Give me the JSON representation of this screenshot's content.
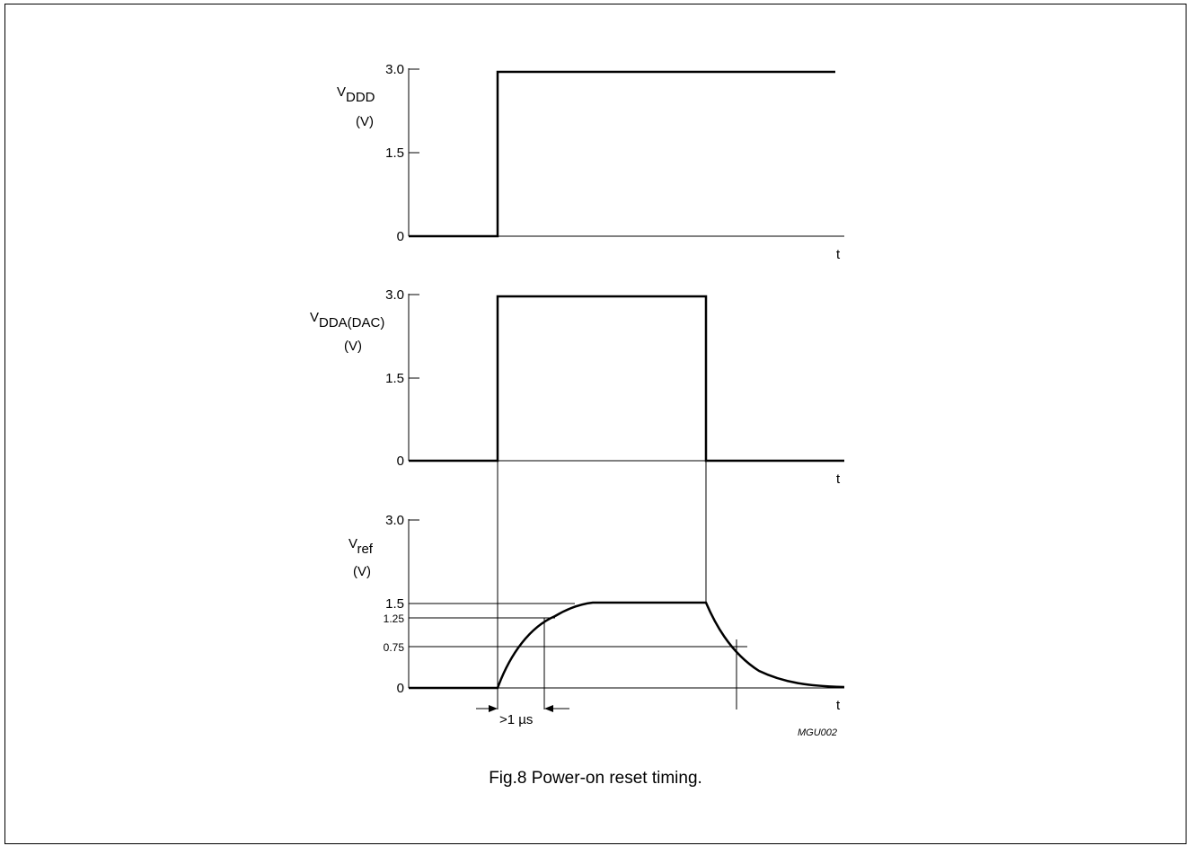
{
  "figure_id": "MGU002",
  "caption": "Fig.8  Power-on reset timing.",
  "time_axis_label": "t",
  "panels": [
    {
      "label_main": "V",
      "label_sub": "DDD",
      "unit": "(V)",
      "ticks": [
        "3.0",
        "1.5",
        "0"
      ]
    },
    {
      "label_main": "V",
      "label_sub": "DDA(DAC)",
      "unit": "(V)",
      "ticks": [
        "3.0",
        "1.5",
        "0"
      ]
    },
    {
      "label_main": "V",
      "label_sub": "ref",
      "unit": "(V)",
      "ticks": [
        "3.0",
        "1.5",
        "1.25",
        "0.75",
        "0"
      ]
    }
  ],
  "delay_annotation": ">1 µs"
}
